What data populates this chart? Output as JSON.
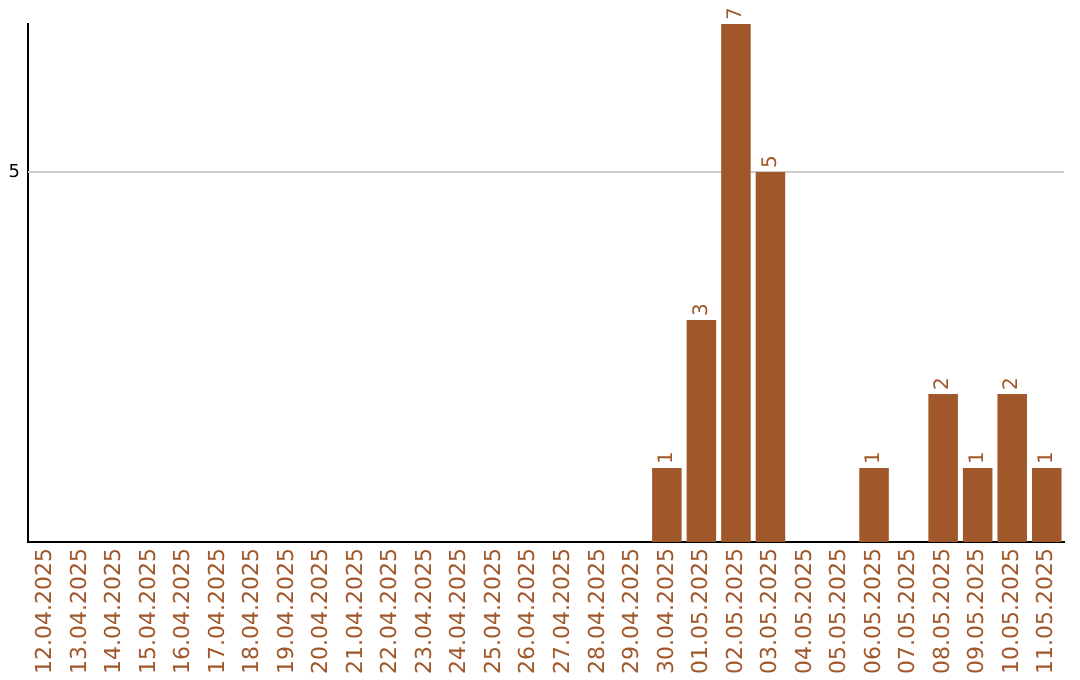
{
  "chart_data": {
    "type": "bar",
    "categories": [
      "12.04.2025",
      "13.04.2025",
      "14.04.2025",
      "15.04.2025",
      "16.04.2025",
      "17.04.2025",
      "18.04.2025",
      "19.04.2025",
      "20.04.2025",
      "21.04.2025",
      "22.04.2025",
      "23.04.2025",
      "24.04.2025",
      "25.04.2025",
      "26.04.2025",
      "27.04.2025",
      "28.04.2025",
      "29.04.2025",
      "30.04.2025",
      "01.05.2025",
      "02.05.2025",
      "03.05.2025",
      "04.05.2025",
      "05.05.2025",
      "06.05.2025",
      "07.05.2025",
      "08.05.2025",
      "09.05.2025",
      "10.05.2025",
      "11.05.2025"
    ],
    "values": [
      null,
      null,
      null,
      null,
      null,
      null,
      null,
      null,
      null,
      null,
      null,
      null,
      null,
      null,
      null,
      null,
      null,
      null,
      1,
      3,
      7,
      5,
      null,
      null,
      1,
      null,
      2,
      1,
      2,
      1
    ],
    "data_labels": true,
    "ylim": [
      0,
      7
    ],
    "ref_lines": [
      {
        "axis": "y",
        "value": 5,
        "label": "5",
        "color": "#cccccc"
      }
    ],
    "color": "#a0572a",
    "legend": false
  }
}
